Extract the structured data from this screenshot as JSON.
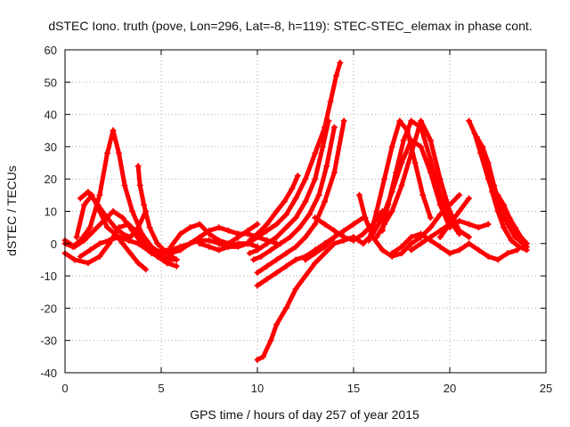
{
  "chart_data": {
    "type": "line",
    "title": "dSTEC Iono. truth (pove, Lon=296, Lat=-8, h=119): STEC-STEC_elemax in phase cont.",
    "xlabel": "GPS time / hours of day 257 of year 2015",
    "ylabel": "dSTEC  / TECUs",
    "xlim": [
      0,
      25
    ],
    "ylim": [
      -40,
      60
    ],
    "xticks": [
      "0",
      "5",
      "10",
      "15",
      "20",
      "25"
    ],
    "yticks": [
      "-40",
      "-30",
      "-20",
      "-10",
      "0",
      "10",
      "20",
      "30",
      "40",
      "50",
      "60"
    ],
    "grid": true,
    "series_color": "#ff0000",
    "series": [
      {
        "x": [
          0.0,
          0.4,
          0.8,
          1.3,
          1.8,
          2.2,
          2.5
        ],
        "y": [
          0,
          -1,
          1,
          5,
          15,
          28,
          35
        ]
      },
      {
        "x": [
          2.5,
          2.8,
          3.1,
          3.5,
          4.0,
          4.5,
          5.0,
          5.5,
          6.0
        ],
        "y": [
          35,
          28,
          18,
          10,
          3,
          -1,
          -3,
          -3,
          -2
        ]
      },
      {
        "x": [
          0.6,
          1.0,
          1.4,
          1.8,
          2.2,
          2.6,
          3.0,
          3.4,
          3.8,
          4.2
        ],
        "y": [
          2,
          12,
          15,
          10,
          5,
          3,
          0,
          -3,
          -6,
          -8
        ]
      },
      {
        "x": [
          0.8,
          1.2,
          1.7,
          2.2,
          2.6,
          3.0,
          3.4,
          3.8,
          4.2
        ],
        "y": [
          14,
          16,
          12,
          8,
          5,
          3,
          2,
          5,
          10
        ]
      },
      {
        "x": [
          3.8,
          3.9,
          4.1,
          4.4,
          4.8,
          5.3,
          5.8
        ],
        "y": [
          24,
          18,
          12,
          5,
          0,
          -3,
          -5
        ]
      },
      {
        "x": [
          0.0,
          0.5,
          1.2,
          1.8,
          2.3,
          2.8,
          3.3,
          3.8,
          4.3,
          4.8,
          5.3
        ],
        "y": [
          -3,
          -5,
          -6,
          -4,
          0,
          5,
          6,
          3,
          -1,
          -4,
          -6
        ]
      },
      {
        "x": [
          0.0,
          0.5,
          1.0,
          1.5,
          2.0,
          2.5,
          3.0,
          3.5,
          4.0,
          4.5,
          5.0,
          5.5,
          5.8
        ],
        "y": [
          1,
          -1,
          1,
          4,
          7,
          10,
          8,
          4,
          0,
          -3,
          -4,
          -5,
          -5
        ]
      },
      {
        "x": [
          0.8,
          1.3,
          1.8,
          2.3,
          2.8,
          3.3,
          3.8,
          4.3,
          4.8,
          5.3,
          5.8
        ],
        "y": [
          -4,
          -2,
          0,
          1,
          2,
          1,
          0,
          -2,
          -4,
          -6,
          -7
        ]
      },
      {
        "x": [
          5.0,
          5.5,
          6.0,
          6.5,
          7.0,
          7.5,
          8.0,
          8.5,
          9.0,
          9.5,
          10.0
        ],
        "y": [
          -2,
          -2,
          -1,
          0,
          1,
          1,
          0,
          -1,
          -1,
          0,
          2
        ]
      },
      {
        "x": [
          5.5,
          6.0,
          6.5,
          7.0,
          7.5,
          8.0,
          8.5,
          9.0,
          9.5,
          10.0
        ],
        "y": [
          -1,
          3,
          5,
          6,
          3,
          1,
          0,
          2,
          4,
          6
        ]
      },
      {
        "x": [
          6.0,
          6.5,
          7.0,
          7.5,
          8.0,
          8.5,
          9.0,
          9.5,
          10.0,
          10.5,
          11.0
        ],
        "y": [
          -2,
          0,
          2,
          4,
          5,
          4,
          3,
          3,
          2,
          1,
          0
        ]
      },
      {
        "x": [
          7.0,
          7.5,
          8.0,
          8.5,
          9.0,
          9.5,
          10.0
        ],
        "y": [
          0,
          -1,
          -2,
          -1,
          0,
          0,
          -1
        ]
      },
      {
        "x": [
          9.5,
          10.0,
          10.5,
          11.0,
          11.5,
          12.0,
          12.5,
          13.0,
          13.5,
          13.8,
          14.1,
          14.3
        ],
        "y": [
          0,
          2,
          4,
          6,
          9,
          14,
          20,
          28,
          36,
          44,
          52,
          56
        ]
      },
      {
        "x": [
          9.6,
          10.0,
          10.5,
          11.0,
          11.5,
          12.0,
          12.5,
          13.0,
          13.4,
          13.7
        ],
        "y": [
          -3,
          -2,
          0,
          2,
          5,
          8,
          13,
          20,
          30,
          38
        ]
      },
      {
        "x": [
          9.8,
          10.2,
          10.7,
          11.2,
          11.7,
          12.2,
          12.7,
          13.2,
          13.6,
          14.0
        ],
        "y": [
          -5,
          -4,
          -2,
          0,
          2,
          5,
          9,
          15,
          24,
          36
        ]
      },
      {
        "x": [
          10.0,
          10.5,
          11.0,
          11.5,
          12.0,
          12.5,
          13.0,
          13.5,
          14.0,
          14.5
        ],
        "y": [
          -9,
          -7,
          -5,
          -3,
          -1,
          2,
          6,
          13,
          22,
          38
        ]
      },
      {
        "x": [
          10.0,
          10.5,
          11.0,
          11.5,
          12.0,
          12.5,
          13.0,
          13.5,
          14.0
        ],
        "y": [
          -13,
          -11,
          -9,
          -7,
          -5,
          -4,
          -2,
          0,
          2
        ]
      },
      {
        "x": [
          10.0,
          10.3,
          10.7,
          11.0,
          11.5,
          12.0,
          12.5,
          13.0,
          13.5,
          14.0,
          14.5,
          15.0,
          15.5
        ],
        "y": [
          -36,
          -35,
          -30,
          -25,
          -20,
          -14,
          -10,
          -6,
          -3,
          0,
          1,
          2,
          0
        ]
      },
      {
        "x": [
          9.6,
          10.0,
          10.5,
          11.0,
          11.4,
          11.8,
          12.1
        ],
        "y": [
          1,
          3,
          6,
          10,
          13,
          17,
          21
        ]
      },
      {
        "x": [
          12.5,
          13.0,
          13.5,
          14.0,
          14.5,
          15.0,
          15.5
        ],
        "y": [
          -5,
          -3,
          -1,
          2,
          4,
          6,
          8
        ]
      },
      {
        "x": [
          13.0,
          13.5,
          14.0,
          14.5,
          15.0,
          15.5,
          16.0,
          16.5
        ],
        "y": [
          8,
          6,
          4,
          2,
          1,
          3,
          6,
          10
        ]
      },
      {
        "x": [
          15.3,
          15.6,
          16.0,
          16.5,
          17.0,
          17.5,
          18.0,
          18.5,
          19.0,
          19.5,
          20.0,
          20.5
        ],
        "y": [
          15,
          8,
          2,
          -2,
          -4,
          -3,
          0,
          2,
          5,
          9,
          12,
          15
        ]
      },
      {
        "x": [
          15.5,
          16.0,
          16.5,
          17.0,
          17.5,
          18.0,
          18.5,
          19.0,
          19.5,
          20.0
        ],
        "y": [
          0,
          3,
          8,
          16,
          25,
          32,
          30,
          22,
          12,
          5
        ]
      },
      {
        "x": [
          15.8,
          16.2,
          16.6,
          17.0,
          17.4,
          17.8,
          18.2,
          18.6,
          19.0
        ],
        "y": [
          1,
          10,
          20,
          30,
          38,
          35,
          25,
          15,
          8
        ]
      },
      {
        "x": [
          16.2,
          16.6,
          17.0,
          17.5,
          18.0,
          18.5,
          19.0,
          19.5,
          20.0,
          20.5,
          21.0
        ],
        "y": [
          2,
          6,
          10,
          18,
          28,
          38,
          32,
          20,
          10,
          4,
          2
        ]
      },
      {
        "x": [
          16.5,
          16.8,
          17.2,
          17.6,
          18.0,
          18.5,
          19.0,
          19.5,
          20.0,
          20.5
        ],
        "y": [
          4,
          12,
          22,
          32,
          38,
          36,
          26,
          15,
          7,
          3
        ]
      },
      {
        "x": [
          17.0,
          17.5,
          18.0,
          18.5,
          19.0,
          19.5,
          20.0,
          20.5,
          21.0,
          21.5,
          22.0,
          22.5,
          23.0,
          23.5
        ],
        "y": [
          -3,
          -1,
          2,
          3,
          1,
          -1,
          -3,
          -2,
          0,
          -2,
          -4,
          -5,
          -3,
          -2
        ]
      },
      {
        "x": [
          18.0,
          18.5,
          19.0,
          19.5,
          20.0,
          20.5,
          21.0,
          21.5,
          22.0
        ],
        "y": [
          -2,
          0,
          2,
          4,
          6,
          7,
          6,
          5,
          6
        ]
      },
      {
        "x": [
          21.0,
          21.3,
          21.6,
          22.0,
          22.4,
          22.8,
          23.2,
          23.6,
          24.0
        ],
        "y": [
          38,
          34,
          28,
          20,
          13,
          8,
          5,
          2,
          0
        ]
      },
      {
        "x": [
          21.4,
          21.7,
          22.0,
          22.3,
          22.6,
          23.0,
          23.4,
          23.8,
          24.0
        ],
        "y": [
          33,
          30,
          25,
          18,
          12,
          6,
          2,
          0,
          -1
        ]
      },
      {
        "x": [
          21.6,
          21.9,
          22.2,
          22.5,
          22.8,
          23.2,
          23.6,
          24.0
        ],
        "y": [
          30,
          24,
          16,
          10,
          5,
          1,
          -1,
          -2
        ]
      },
      {
        "x": [
          22.5,
          22.8,
          23.1,
          23.4,
          23.7,
          24.0
        ],
        "y": [
          15,
          12,
          8,
          5,
          2,
          0
        ]
      },
      {
        "x": [
          19.5,
          20.0,
          20.5,
          21.0
        ],
        "y": [
          2,
          6,
          10,
          14
        ]
      }
    ]
  }
}
